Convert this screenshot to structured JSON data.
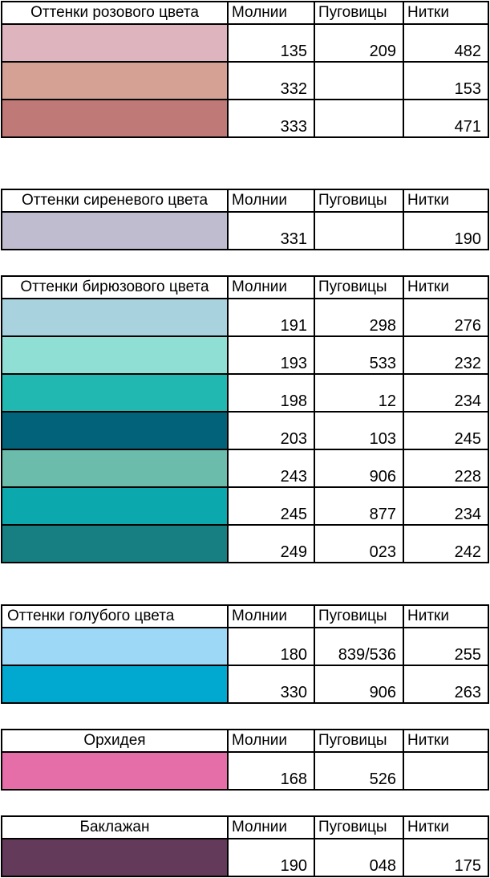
{
  "tables": [
    {
      "title": "Оттенки розового цвета",
      "align": "center",
      "headers": [
        "Молнии",
        "Пуговицы",
        "Нитки"
      ],
      "rows": [
        {
          "color": "#deb5bf",
          "zipper": "135",
          "buttons": "209",
          "threads": "482"
        },
        {
          "color": "#d5a194",
          "zipper": "332",
          "buttons": "",
          "threads": "153"
        },
        {
          "color": "#bf7a77",
          "zipper": "333",
          "buttons": "",
          "threads": "471"
        }
      ]
    },
    {
      "title": "Оттенки сиреневого цвета",
      "align": "center",
      "headers": [
        "Молнии",
        "Пуговицы",
        "Нитки"
      ],
      "rows": [
        {
          "color": "#c0bcd0",
          "zipper": "331",
          "buttons": "",
          "threads": "190"
        }
      ]
    },
    {
      "title": "Оттенки бирюзового цвета",
      "align": "center",
      "headers": [
        "Молнии",
        "Пуговицы",
        "Нитки"
      ],
      "rows": [
        {
          "color": "#a7d2de",
          "zipper": "191",
          "buttons": "298",
          "threads": "276"
        },
        {
          "color": "#8fdfd5",
          "zipper": "193",
          "buttons": "533",
          "threads": "232"
        },
        {
          "color": "#22b8b2",
          "zipper": "198",
          "buttons": "12",
          "threads": "234"
        },
        {
          "color": "#01627a",
          "zipper": "203",
          "buttons": "103",
          "threads": "245"
        },
        {
          "color": "#6bbcab",
          "zipper": "243",
          "buttons": "906",
          "threads": "228"
        },
        {
          "color": "#0ba8ad",
          "zipper": "245",
          "buttons": "877",
          "threads": "234"
        },
        {
          "color": "#177f81",
          "zipper": "249",
          "buttons": "023",
          "threads": "242"
        }
      ]
    },
    {
      "title": "Оттенки голубого цвета",
      "align": "left",
      "headers": [
        "Молнии",
        "Пуговицы",
        "Нитки"
      ],
      "rows": [
        {
          "color": "#9dd8f6",
          "zipper": "180",
          "buttons": "839/536",
          "threads": "255"
        },
        {
          "color": "#01a8cf",
          "zipper": "330",
          "buttons": "906",
          "threads": "263"
        }
      ]
    },
    {
      "title": "Орхидея",
      "align": "center",
      "headers": [
        "Молнии",
        "Пуговицы",
        "Нитки"
      ],
      "rows": [
        {
          "color": "#e56ea8",
          "zipper": "168",
          "buttons": "526",
          "threads": ""
        }
      ]
    },
    {
      "title": "Баклажан",
      "align": "center",
      "headers": [
        "Молнии",
        "Пуговицы",
        "Нитки"
      ],
      "rows": [
        {
          "color": "#643a5a",
          "zipper": "190",
          "buttons": "048",
          "threads": "175"
        }
      ]
    }
  ]
}
